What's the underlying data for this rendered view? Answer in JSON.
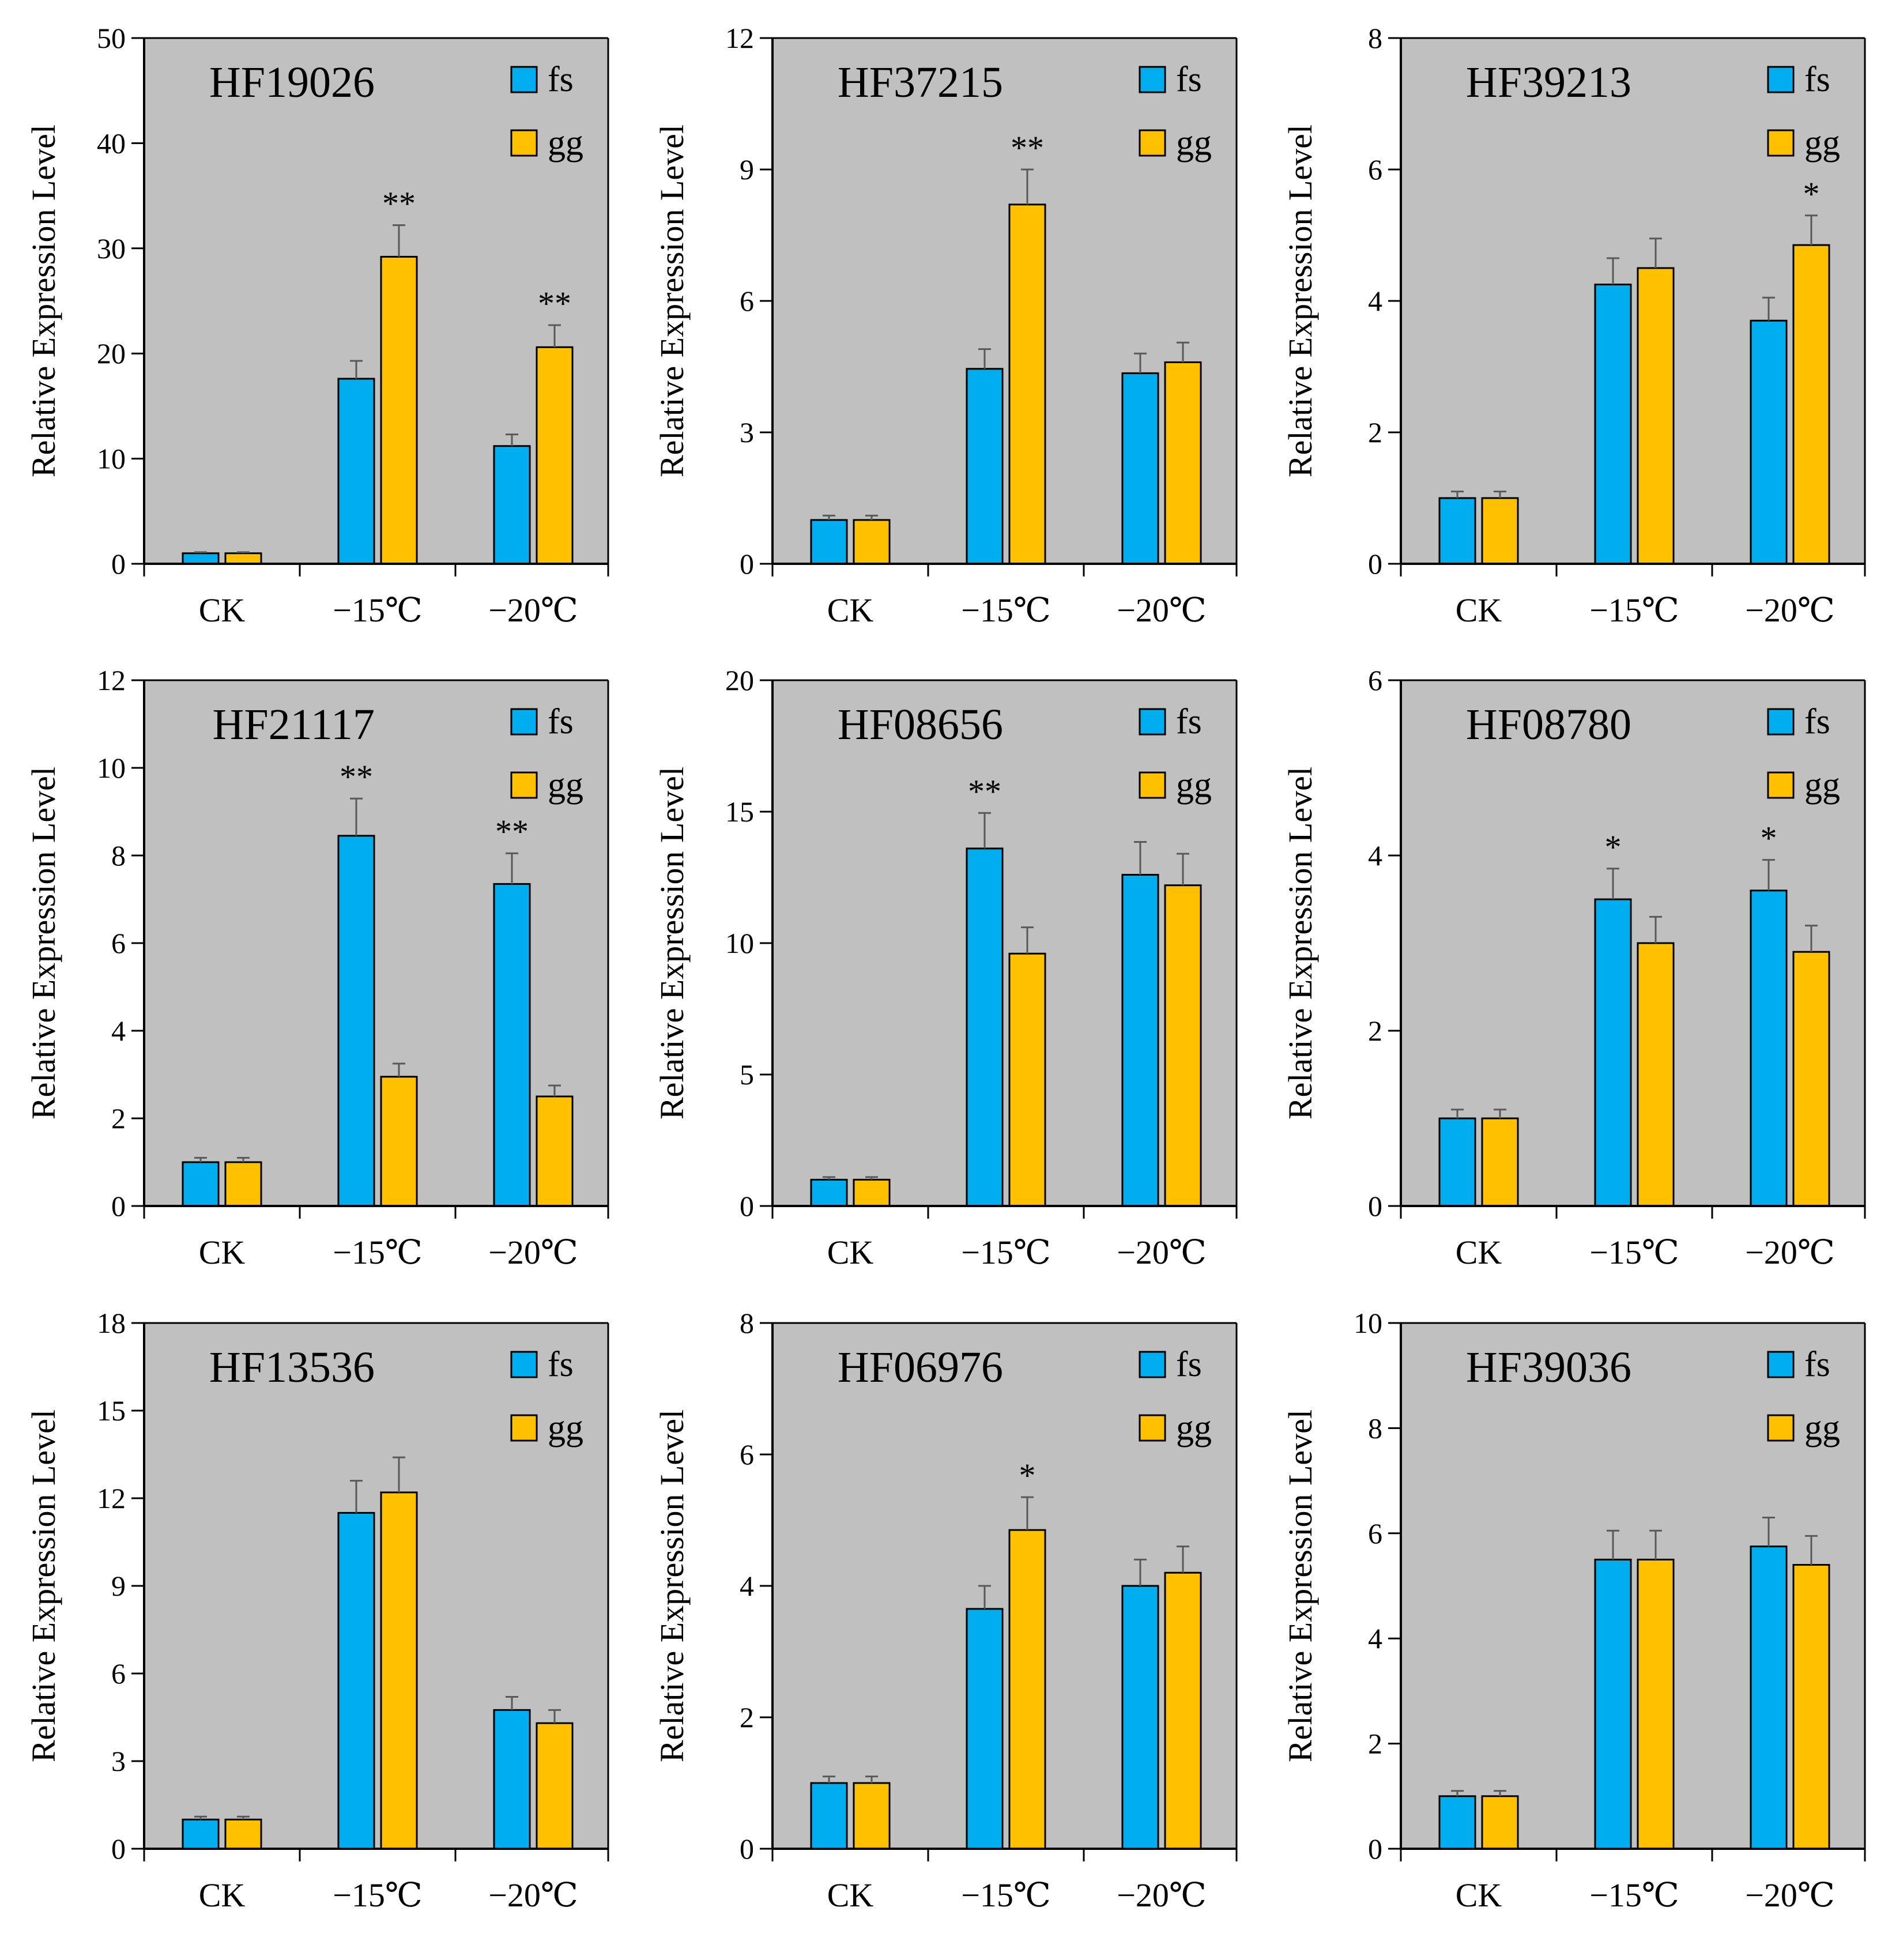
{
  "figure": {
    "ylabel": "Relative Expression Level",
    "categories": [
      "CK",
      "−15℃",
      "−20℃"
    ],
    "legend": [
      {
        "name": "fs",
        "color": "#00AEEF"
      },
      {
        "name": "gg",
        "color": "#FFC000"
      }
    ],
    "plot_background": "#C0C0C0",
    "error_bar_color": "#595959"
  },
  "chart_data": [
    {
      "type": "bar",
      "title": "HF19026",
      "ylabel": "Relative Expression Level",
      "categories": [
        "CK",
        "−15℃",
        "−20℃"
      ],
      "ylim": [
        0,
        50
      ],
      "yticks": [
        0,
        10,
        20,
        30,
        40,
        50
      ],
      "series": [
        {
          "name": "fs",
          "values": [
            1.0,
            17.6,
            11.2
          ],
          "errors": [
            0.1,
            1.7,
            1.1
          ]
        },
        {
          "name": "gg",
          "values": [
            1.0,
            29.2,
            20.6
          ],
          "errors": [
            0.1,
            3.0,
            2.1
          ]
        }
      ],
      "significance": [
        {
          "category": 1,
          "series": "gg",
          "label": "**"
        },
        {
          "category": 2,
          "series": "gg",
          "label": "**"
        }
      ]
    },
    {
      "type": "bar",
      "title": "HF37215",
      "ylabel": "Relative Expression Level",
      "categories": [
        "CK",
        "−15℃",
        "−20℃"
      ],
      "ylim": [
        0,
        12
      ],
      "yticks": [
        0,
        3,
        6,
        9,
        12
      ],
      "series": [
        {
          "name": "fs",
          "values": [
            1.0,
            4.45,
            4.35
          ],
          "errors": [
            0.1,
            0.45,
            0.45
          ]
        },
        {
          "name": "gg",
          "values": [
            1.0,
            8.2,
            4.6
          ],
          "errors": [
            0.1,
            0.8,
            0.45
          ]
        }
      ],
      "significance": [
        {
          "category": 1,
          "series": "gg",
          "label": "**"
        }
      ]
    },
    {
      "type": "bar",
      "title": "HF39213",
      "ylabel": "Relative Expression Level",
      "categories": [
        "CK",
        "−15℃",
        "−20℃"
      ],
      "ylim": [
        0,
        8
      ],
      "yticks": [
        0,
        2,
        4,
        6,
        8
      ],
      "series": [
        {
          "name": "fs",
          "values": [
            1.0,
            4.25,
            3.7
          ],
          "errors": [
            0.1,
            0.4,
            0.35
          ]
        },
        {
          "name": "gg",
          "values": [
            1.0,
            4.5,
            4.85
          ],
          "errors": [
            0.1,
            0.45,
            0.45
          ]
        }
      ],
      "significance": [
        {
          "category": 2,
          "series": "gg",
          "label": "*"
        }
      ]
    },
    {
      "type": "bar",
      "title": "HF21117",
      "ylabel": "Relative Expression Level",
      "categories": [
        "CK",
        "−15℃",
        "−20℃"
      ],
      "ylim": [
        0,
        12
      ],
      "yticks": [
        0,
        2,
        4,
        6,
        8,
        10,
        12
      ],
      "series": [
        {
          "name": "fs",
          "values": [
            1.0,
            8.45,
            7.35
          ],
          "errors": [
            0.1,
            0.85,
            0.7
          ]
        },
        {
          "name": "gg",
          "values": [
            1.0,
            2.95,
            2.5
          ],
          "errors": [
            0.1,
            0.3,
            0.25
          ]
        }
      ],
      "significance": [
        {
          "category": 1,
          "series": "fs",
          "label": "**"
        },
        {
          "category": 2,
          "series": "fs",
          "label": "**"
        }
      ]
    },
    {
      "type": "bar",
      "title": "HF08656",
      "ylabel": "Relative Expression Level",
      "categories": [
        "CK",
        "−15℃",
        "−20℃"
      ],
      "ylim": [
        0,
        20
      ],
      "yticks": [
        0,
        5,
        10,
        15,
        20
      ],
      "series": [
        {
          "name": "fs",
          "values": [
            1.0,
            13.6,
            12.6
          ],
          "errors": [
            0.1,
            1.35,
            1.25
          ]
        },
        {
          "name": "gg",
          "values": [
            1.0,
            9.6,
            12.2
          ],
          "errors": [
            0.1,
            1.0,
            1.2
          ]
        }
      ],
      "significance": [
        {
          "category": 1,
          "series": "fs",
          "label": "**"
        }
      ]
    },
    {
      "type": "bar",
      "title": "HF08780",
      "ylabel": "Relative Expression Level",
      "categories": [
        "CK",
        "−15℃",
        "−20℃"
      ],
      "ylim": [
        0,
        6
      ],
      "yticks": [
        0,
        2,
        4,
        6
      ],
      "series": [
        {
          "name": "fs",
          "values": [
            1.0,
            3.5,
            3.6
          ],
          "errors": [
            0.1,
            0.35,
            0.35
          ]
        },
        {
          "name": "gg",
          "values": [
            1.0,
            3.0,
            2.9
          ],
          "errors": [
            0.1,
            0.3,
            0.3
          ]
        }
      ],
      "significance": [
        {
          "category": 1,
          "series": "fs",
          "label": "*"
        },
        {
          "category": 2,
          "series": "fs",
          "label": "*"
        }
      ]
    },
    {
      "type": "bar",
      "title": "HF13536",
      "ylabel": "Relative Expression Level",
      "categories": [
        "CK",
        "−15℃",
        "−20℃"
      ],
      "ylim": [
        0,
        18
      ],
      "yticks": [
        0,
        3,
        6,
        9,
        12,
        15,
        18
      ],
      "series": [
        {
          "name": "fs",
          "values": [
            1.0,
            11.5,
            4.75
          ],
          "errors": [
            0.1,
            1.1,
            0.45
          ]
        },
        {
          "name": "gg",
          "values": [
            1.0,
            12.2,
            4.3
          ],
          "errors": [
            0.1,
            1.2,
            0.45
          ]
        }
      ],
      "significance": []
    },
    {
      "type": "bar",
      "title": "HF06976",
      "ylabel": "Relative Expression Level",
      "categories": [
        "CK",
        "−15℃",
        "−20℃"
      ],
      "ylim": [
        0,
        8
      ],
      "yticks": [
        0,
        2,
        4,
        6,
        8
      ],
      "series": [
        {
          "name": "fs",
          "values": [
            1.0,
            3.65,
            4.0
          ],
          "errors": [
            0.1,
            0.35,
            0.4
          ]
        },
        {
          "name": "gg",
          "values": [
            1.0,
            4.85,
            4.2
          ],
          "errors": [
            0.1,
            0.5,
            0.4
          ]
        }
      ],
      "significance": [
        {
          "category": 1,
          "series": "gg",
          "label": "*"
        }
      ]
    },
    {
      "type": "bar",
      "title": "HF39036",
      "ylabel": "Relative Expression Level",
      "categories": [
        "CK",
        "−15℃",
        "−20℃"
      ],
      "ylim": [
        0,
        10
      ],
      "yticks": [
        0,
        2,
        4,
        6,
        8,
        10
      ],
      "series": [
        {
          "name": "fs",
          "values": [
            1.0,
            5.5,
            5.75
          ],
          "errors": [
            0.1,
            0.55,
            0.55
          ]
        },
        {
          "name": "gg",
          "values": [
            1.0,
            5.5,
            5.4
          ],
          "errors": [
            0.1,
            0.55,
            0.55
          ]
        }
      ],
      "significance": []
    }
  ]
}
